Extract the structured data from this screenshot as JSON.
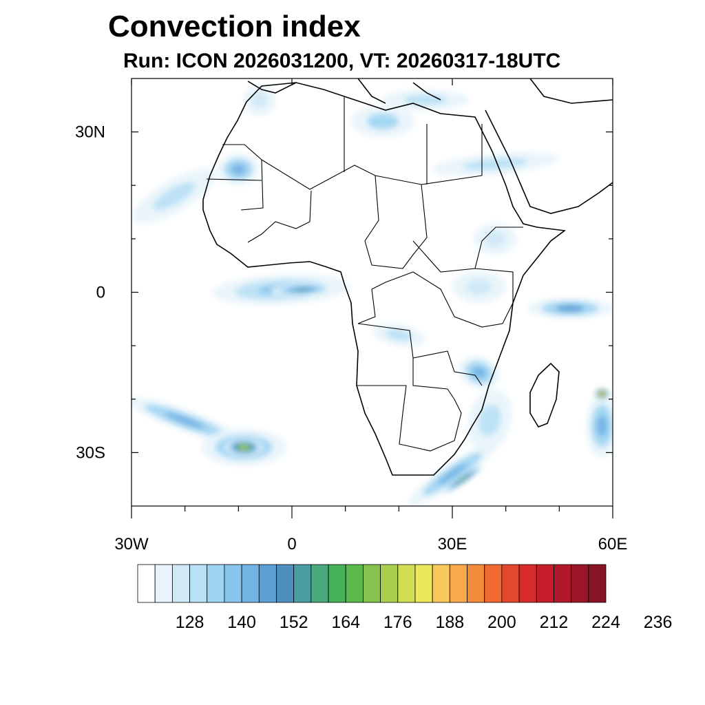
{
  "title": "Convection index",
  "subtitle": "Run: ICON 2026031200,  VT: 20260317-18UTC",
  "map": {
    "lon_range": [
      -30,
      60
    ],
    "lat_range": [
      -40,
      40
    ],
    "lat_ticks": [
      {
        "value": 30,
        "label": "30N"
      },
      {
        "value": 0,
        "label": "0"
      },
      {
        "value": -30,
        "label": "30S"
      }
    ],
    "lon_ticks": [
      {
        "value": -30,
        "label": "30W"
      },
      {
        "value": 0,
        "label": "0"
      },
      {
        "value": 30,
        "label": "30E"
      },
      {
        "value": 60,
        "label": "60E"
      }
    ],
    "blobs": [
      {
        "name": "blob-wafrica-atlantic-band",
        "lon": -22,
        "lat": 18,
        "rlon": 9,
        "rlat": 3,
        "angle": -30,
        "level": 3
      },
      {
        "name": "blob-western-sahara",
        "lon": -10,
        "lat": 23,
        "rlon": 4,
        "rlat": 3,
        "angle": 0,
        "level": 6
      },
      {
        "name": "blob-gulf-of-guinea",
        "lon": -2,
        "lat": 0.5,
        "rlon": 13,
        "rlat": 2.8,
        "angle": -3,
        "level": 5
      },
      {
        "name": "blob-gulf-of-guinea-core",
        "lon": 2,
        "lat": 0.5,
        "rlon": 6,
        "rlat": 1.2,
        "angle": -3,
        "level": 9
      },
      {
        "name": "blob-congo-basin",
        "lon": 20,
        "lat": -8,
        "rlon": 5,
        "rlat": 2,
        "angle": 10,
        "level": 3
      },
      {
        "name": "blob-mozambique",
        "lon": 35,
        "lat": -15,
        "rlon": 4,
        "rlat": 3,
        "angle": 20,
        "level": 6
      },
      {
        "name": "blob-mozambique-channel",
        "lon": 37,
        "lat": -24,
        "rlon": 4,
        "rlat": 6,
        "angle": 15,
        "level": 3
      },
      {
        "name": "blob-south-atlantic-band",
        "lon": -20,
        "lat": -24,
        "rlon": 12,
        "rlat": 2,
        "angle": 20,
        "level": 6
      },
      {
        "name": "blob-south-atlantic-cell",
        "lon": -9,
        "lat": -29,
        "rlon": 8,
        "rlat": 3.5,
        "angle": 0,
        "level": 6
      },
      {
        "name": "blob-south-atlantic-core",
        "lon": -9,
        "lat": -29,
        "rlon": 3.5,
        "rlat": 1.6,
        "angle": 0,
        "level": 15
      },
      {
        "name": "blob-south-africa-band",
        "lon": 30,
        "lat": -34,
        "rlon": 10,
        "rlat": 2,
        "angle": -35,
        "level": 6
      },
      {
        "name": "blob-south-africa-core",
        "lon": 32,
        "lat": -35,
        "rlon": 5,
        "rlat": 0.8,
        "angle": -35,
        "level": 12
      },
      {
        "name": "blob-indian-ocean-equator",
        "lon": 52,
        "lat": -3,
        "rlon": 8,
        "rlat": 2,
        "angle": 0,
        "level": 7
      },
      {
        "name": "blob-indian-ocean-east",
        "lon": 58,
        "lat": -25,
        "rlon": 3,
        "rlat": 6,
        "angle": 0,
        "level": 6
      },
      {
        "name": "blob-indian-ocean-core",
        "lon": 58,
        "lat": -19,
        "rlon": 1.5,
        "rlat": 1.2,
        "angle": 0,
        "level": 21
      },
      {
        "name": "blob-libya-coast",
        "lon": 17,
        "lat": 32,
        "rlon": 6,
        "rlat": 3,
        "angle": 0,
        "level": 4
      },
      {
        "name": "blob-mediterranean",
        "lon": 25,
        "lat": 36,
        "rlon": 8,
        "rlat": 2,
        "angle": 0,
        "level": 3
      },
      {
        "name": "blob-sudan-band",
        "lon": 38,
        "lat": 24,
        "rlon": 12,
        "rlat": 2,
        "angle": -5,
        "level": 3
      },
      {
        "name": "blob-ethiopia",
        "lon": 38,
        "lat": 10,
        "rlon": 4,
        "rlat": 3,
        "angle": 0,
        "level": 2
      },
      {
        "name": "blob-east-africa",
        "lon": 35,
        "lat": 1,
        "rlon": 5,
        "rlat": 3,
        "angle": 0,
        "level": 2
      },
      {
        "name": "blob-iberia",
        "lon": -6,
        "lat": 36,
        "rlon": 3,
        "rlat": 3,
        "angle": 0,
        "level": 2
      }
    ]
  },
  "colorbar": {
    "colors": [
      "#ffffff",
      "#e8f4fb",
      "#cfe9f7",
      "#b8e0f6",
      "#9fd5f3",
      "#87c5ec",
      "#72b3e3",
      "#5b9fd5",
      "#4f8fbf",
      "#4a9da3",
      "#4aa87c",
      "#46b157",
      "#5bb84b",
      "#85c34e",
      "#a9cf4e",
      "#d1dd52",
      "#ece65d",
      "#f7c85a",
      "#f7a94b",
      "#f38b3a",
      "#ee6a30",
      "#e4482c",
      "#d82c2c",
      "#c61d2b",
      "#b0182a",
      "#9a1626",
      "#861424"
    ],
    "labels": [
      "128",
      "140",
      "152",
      "164",
      "176",
      "188",
      "200",
      "212",
      "224",
      "236"
    ]
  }
}
